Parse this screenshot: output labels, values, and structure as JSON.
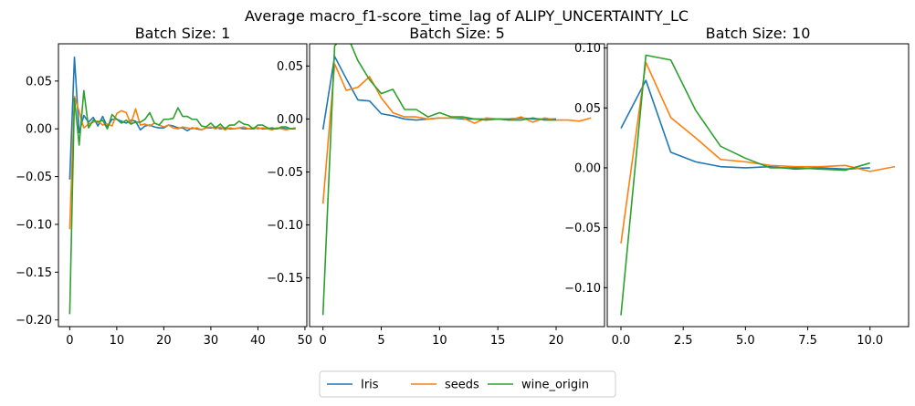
{
  "figure_title": "Average macro_f1-score_time_lag of ALIPY_UNCERTAINTY_LC",
  "series_colors": {
    "Iris": "#1f77b4",
    "seeds": "#ff7f0e",
    "wine_origin": "#2ca02c"
  },
  "legend": {
    "placement": "bottom-center",
    "entries": [
      "Iris",
      "seeds",
      "wine_origin"
    ]
  },
  "chart_data": [
    {
      "type": "line",
      "title": "Batch Size: 1",
      "xlim": [
        -2.4,
        50.4
      ],
      "ylim": [
        -0.207,
        0.089
      ],
      "xticks": [
        0,
        10,
        20,
        30,
        40,
        50
      ],
      "xtick_labels": [
        "0",
        "10",
        "20",
        "30",
        "40",
        "50"
      ],
      "yticks": [
        -0.2,
        -0.15,
        -0.1,
        -0.05,
        0.0,
        0.05
      ],
      "ytick_labels": [
        "−0.20",
        "−0.15",
        "−0.10",
        "−0.05",
        "0.00",
        "0.05"
      ],
      "series": [
        {
          "name": "Iris",
          "x": [
            0,
            1,
            2,
            3,
            4,
            5,
            6,
            7,
            8,
            9,
            10,
            11,
            12,
            13,
            14,
            15,
            16,
            17,
            18,
            19,
            20,
            21,
            22,
            23,
            24,
            25,
            26,
            27,
            28,
            29,
            30,
            31,
            32,
            33,
            34,
            35,
            36,
            37,
            38,
            39,
            40,
            41,
            42,
            43,
            44,
            45,
            46,
            47,
            48
          ],
          "y": [
            -0.053,
            0.075,
            -0.004,
            0.014,
            0.007,
            0.012,
            0.003,
            0.013,
            0.002,
            0.01,
            0.01,
            0.008,
            0.006,
            0.009,
            0.008,
            -0.001,
            0.003,
            0.004,
            0.002,
            0.001,
            0.001,
            0.004,
            0.003,
            0.001,
            0.001,
            -0.002,
            0.001,
            0.0,
            -0.001,
            0.001,
            0.001,
            0.002,
            0.0,
            0.001,
            0.0,
            0.0,
            0.001,
            0.0,
            0.0,
            0.0,
            0.001,
            0.0,
            0.0,
            0.001,
            0.0,
            0.001,
            0.0,
            0.0,
            0.001
          ]
        },
        {
          "name": "seeds",
          "x": [
            0,
            1,
            2,
            3,
            4,
            5,
            6,
            7,
            8,
            9,
            10,
            11,
            12,
            13,
            14,
            15,
            16,
            17,
            18,
            19,
            20,
            21,
            22,
            23,
            24,
            25,
            26,
            27,
            28,
            29,
            30,
            31,
            32,
            33,
            34,
            35,
            36,
            37,
            38,
            39,
            40,
            41,
            42,
            43,
            44,
            45,
            46,
            47,
            48
          ],
          "y": [
            -0.105,
            0.034,
            0.018,
            0.001,
            0.005,
            0.007,
            0.008,
            0.004,
            0.005,
            0.003,
            0.016,
            0.019,
            0.017,
            0.005,
            0.021,
            0.004,
            0.005,
            0.003,
            0.006,
            0.004,
            0.002,
            0.004,
            0.001,
            0.0,
            0.002,
            0.001,
            0.0,
            0.001,
            -0.001,
            0.001,
            0.002,
            0.0,
            0.002,
            -0.001,
            0.001,
            0.0,
            0.001,
            0.002,
            0.0,
            0.001,
            0.0,
            0.001,
            0.0,
            -0.001,
            0.001,
            0.0,
            -0.001,
            0.0,
            0.001
          ]
        },
        {
          "name": "wine_origin",
          "x": [
            0,
            1,
            2,
            3,
            4,
            5,
            6,
            7,
            8,
            9,
            10,
            11,
            12,
            13,
            14,
            15,
            16,
            17,
            18,
            19,
            20,
            21,
            22,
            23,
            24,
            25,
            26,
            27,
            28,
            29,
            30,
            31,
            32,
            33,
            34,
            35,
            36,
            37,
            38,
            39,
            40,
            41,
            42,
            43,
            44,
            45,
            46,
            47,
            48
          ],
          "y": [
            -0.194,
            0.032,
            -0.017,
            0.04,
            0.001,
            0.009,
            0.007,
            0.009,
            0.0,
            0.015,
            0.01,
            0.006,
            0.009,
            0.005,
            0.007,
            0.007,
            0.01,
            0.017,
            0.006,
            0.004,
            0.01,
            0.01,
            0.011,
            0.022,
            0.013,
            0.013,
            0.01,
            0.01,
            0.003,
            0.002,
            0.006,
            0.001,
            0.005,
            0.0,
            0.004,
            0.004,
            0.008,
            0.005,
            0.004,
            0.0,
            0.004,
            0.004,
            0.001,
            0.0,
            0.0,
            0.002,
            0.002,
            0.0,
            0.0
          ]
        }
      ]
    },
    {
      "type": "line",
      "title": "Batch Size: 5",
      "xlim": [
        -1.15,
        24.15
      ],
      "ylim": [
        -0.196,
        0.071
      ],
      "xticks": [
        0,
        5,
        10,
        15,
        20
      ],
      "xtick_labels": [
        "0",
        "5",
        "10",
        "15",
        "20"
      ],
      "yticks": [
        -0.15,
        -0.1,
        -0.05,
        0.0,
        0.05
      ],
      "ytick_labels": [
        "−0.15",
        "−0.10",
        "−0.05",
        "0.00",
        "0.05"
      ],
      "series": [
        {
          "name": "Iris",
          "x": [
            0,
            1,
            2,
            3,
            4,
            5,
            6,
            7,
            8,
            9,
            10,
            11,
            12,
            13,
            14,
            15,
            16,
            17,
            18,
            19,
            20
          ],
          "y": [
            -0.01,
            0.059,
            0.038,
            0.018,
            0.017,
            0.005,
            0.003,
            0.0,
            -0.001,
            0.0,
            0.001,
            0.001,
            0.0,
            0.0,
            0.0,
            0.0,
            0.0,
            0.001,
            0.0,
            0.0,
            0.0
          ]
        },
        {
          "name": "seeds",
          "x": [
            0,
            1,
            2,
            3,
            4,
            5,
            6,
            7,
            8,
            9,
            10,
            11,
            12,
            13,
            14,
            15,
            16,
            17,
            18,
            19,
            20,
            21,
            22,
            23
          ],
          "y": [
            -0.08,
            0.052,
            0.027,
            0.03,
            0.04,
            0.02,
            0.006,
            0.002,
            0.002,
            0.0,
            0.001,
            0.001,
            0.001,
            -0.004,
            0.001,
            0.0,
            -0.001,
            0.002,
            -0.003,
            0.001,
            -0.001,
            -0.001,
            -0.002,
            0.001
          ]
        },
        {
          "name": "wine_origin",
          "x": [
            0,
            1,
            2,
            3,
            4,
            5,
            6,
            7,
            8,
            9,
            10,
            11,
            12,
            13,
            14,
            15,
            16,
            17,
            18,
            19,
            20
          ],
          "y": [
            -0.185,
            0.069,
            0.081,
            0.055,
            0.037,
            0.024,
            0.028,
            0.009,
            0.009,
            0.002,
            0.006,
            0.002,
            0.002,
            0.0,
            -0.001,
            0.0,
            -0.001,
            -0.001,
            0.001,
            -0.001,
            -0.001
          ]
        }
      ]
    },
    {
      "type": "line",
      "title": "Batch Size: 10",
      "xlim": [
        -0.55,
        11.55
      ],
      "ylim": [
        -0.1325,
        0.1035
      ],
      "xticks": [
        0,
        2.5,
        5,
        7.5,
        10
      ],
      "xtick_labels": [
        "0.0",
        "2.5",
        "5.0",
        "7.5",
        "10.0"
      ],
      "yticks": [
        -0.1,
        -0.05,
        0.0,
        0.05,
        0.1
      ],
      "ytick_labels": [
        "−0.10",
        "−0.05",
        "0.00",
        "0.05",
        "0.10"
      ],
      "series": [
        {
          "name": "Iris",
          "x": [
            0,
            1,
            2,
            3,
            4,
            5,
            6,
            7,
            8,
            9,
            10
          ],
          "y": [
            0.033,
            0.073,
            0.013,
            0.005,
            0.001,
            0.0,
            0.001,
            -0.001,
            0.0,
            -0.001,
            0.0
          ]
        },
        {
          "name": "seeds",
          "x": [
            0,
            1,
            2,
            3,
            4,
            5,
            6,
            7,
            8,
            9,
            10,
            11
          ],
          "y": [
            -0.063,
            0.088,
            0.042,
            0.025,
            0.007,
            0.005,
            0.002,
            0.001,
            0.001,
            0.002,
            -0.003,
            0.001
          ]
        },
        {
          "name": "wine_origin",
          "x": [
            0,
            1,
            2,
            3,
            4,
            5,
            6,
            7,
            8,
            9,
            10
          ],
          "y": [
            -0.123,
            0.094,
            0.09,
            0.048,
            0.018,
            0.008,
            0.0,
            0.0,
            -0.001,
            -0.002,
            0.004
          ]
        }
      ]
    }
  ]
}
